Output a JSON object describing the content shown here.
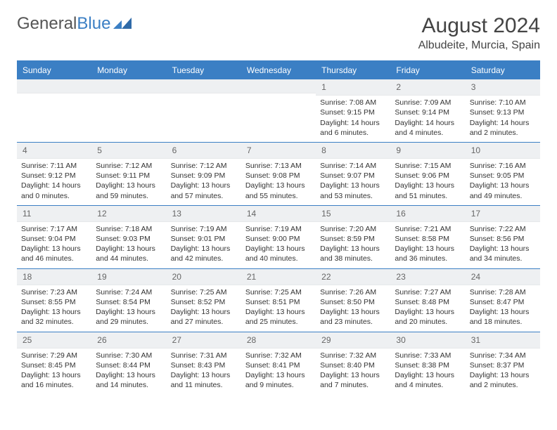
{
  "logo": {
    "text1": "General",
    "text2": "Blue"
  },
  "title": "August 2024",
  "location": "Albudeite, Murcia, Spain",
  "colors": {
    "header_bg": "#3b7fc4",
    "header_text": "#ffffff",
    "daynum_bg": "#eef0f2",
    "border": "#3b7fc4",
    "body_text": "#333333"
  },
  "weekdays": [
    "Sunday",
    "Monday",
    "Tuesday",
    "Wednesday",
    "Thursday",
    "Friday",
    "Saturday"
  ],
  "weeks": [
    [
      {
        "n": "",
        "sunrise": "",
        "sunset": "",
        "daylight": ""
      },
      {
        "n": "",
        "sunrise": "",
        "sunset": "",
        "daylight": ""
      },
      {
        "n": "",
        "sunrise": "",
        "sunset": "",
        "daylight": ""
      },
      {
        "n": "",
        "sunrise": "",
        "sunset": "",
        "daylight": ""
      },
      {
        "n": "1",
        "sunrise": "7:08 AM",
        "sunset": "9:15 PM",
        "daylight": "14 hours and 6 minutes."
      },
      {
        "n": "2",
        "sunrise": "7:09 AM",
        "sunset": "9:14 PM",
        "daylight": "14 hours and 4 minutes."
      },
      {
        "n": "3",
        "sunrise": "7:10 AM",
        "sunset": "9:13 PM",
        "daylight": "14 hours and 2 minutes."
      }
    ],
    [
      {
        "n": "4",
        "sunrise": "7:11 AM",
        "sunset": "9:12 PM",
        "daylight": "14 hours and 0 minutes."
      },
      {
        "n": "5",
        "sunrise": "7:12 AM",
        "sunset": "9:11 PM",
        "daylight": "13 hours and 59 minutes."
      },
      {
        "n": "6",
        "sunrise": "7:12 AM",
        "sunset": "9:09 PM",
        "daylight": "13 hours and 57 minutes."
      },
      {
        "n": "7",
        "sunrise": "7:13 AM",
        "sunset": "9:08 PM",
        "daylight": "13 hours and 55 minutes."
      },
      {
        "n": "8",
        "sunrise": "7:14 AM",
        "sunset": "9:07 PM",
        "daylight": "13 hours and 53 minutes."
      },
      {
        "n": "9",
        "sunrise": "7:15 AM",
        "sunset": "9:06 PM",
        "daylight": "13 hours and 51 minutes."
      },
      {
        "n": "10",
        "sunrise": "7:16 AM",
        "sunset": "9:05 PM",
        "daylight": "13 hours and 49 minutes."
      }
    ],
    [
      {
        "n": "11",
        "sunrise": "7:17 AM",
        "sunset": "9:04 PM",
        "daylight": "13 hours and 46 minutes."
      },
      {
        "n": "12",
        "sunrise": "7:18 AM",
        "sunset": "9:03 PM",
        "daylight": "13 hours and 44 minutes."
      },
      {
        "n": "13",
        "sunrise": "7:19 AM",
        "sunset": "9:01 PM",
        "daylight": "13 hours and 42 minutes."
      },
      {
        "n": "14",
        "sunrise": "7:19 AM",
        "sunset": "9:00 PM",
        "daylight": "13 hours and 40 minutes."
      },
      {
        "n": "15",
        "sunrise": "7:20 AM",
        "sunset": "8:59 PM",
        "daylight": "13 hours and 38 minutes."
      },
      {
        "n": "16",
        "sunrise": "7:21 AM",
        "sunset": "8:58 PM",
        "daylight": "13 hours and 36 minutes."
      },
      {
        "n": "17",
        "sunrise": "7:22 AM",
        "sunset": "8:56 PM",
        "daylight": "13 hours and 34 minutes."
      }
    ],
    [
      {
        "n": "18",
        "sunrise": "7:23 AM",
        "sunset": "8:55 PM",
        "daylight": "13 hours and 32 minutes."
      },
      {
        "n": "19",
        "sunrise": "7:24 AM",
        "sunset": "8:54 PM",
        "daylight": "13 hours and 29 minutes."
      },
      {
        "n": "20",
        "sunrise": "7:25 AM",
        "sunset": "8:52 PM",
        "daylight": "13 hours and 27 minutes."
      },
      {
        "n": "21",
        "sunrise": "7:25 AM",
        "sunset": "8:51 PM",
        "daylight": "13 hours and 25 minutes."
      },
      {
        "n": "22",
        "sunrise": "7:26 AM",
        "sunset": "8:50 PM",
        "daylight": "13 hours and 23 minutes."
      },
      {
        "n": "23",
        "sunrise": "7:27 AM",
        "sunset": "8:48 PM",
        "daylight": "13 hours and 20 minutes."
      },
      {
        "n": "24",
        "sunrise": "7:28 AM",
        "sunset": "8:47 PM",
        "daylight": "13 hours and 18 minutes."
      }
    ],
    [
      {
        "n": "25",
        "sunrise": "7:29 AM",
        "sunset": "8:45 PM",
        "daylight": "13 hours and 16 minutes."
      },
      {
        "n": "26",
        "sunrise": "7:30 AM",
        "sunset": "8:44 PM",
        "daylight": "13 hours and 14 minutes."
      },
      {
        "n": "27",
        "sunrise": "7:31 AM",
        "sunset": "8:43 PM",
        "daylight": "13 hours and 11 minutes."
      },
      {
        "n": "28",
        "sunrise": "7:32 AM",
        "sunset": "8:41 PM",
        "daylight": "13 hours and 9 minutes."
      },
      {
        "n": "29",
        "sunrise": "7:32 AM",
        "sunset": "8:40 PM",
        "daylight": "13 hours and 7 minutes."
      },
      {
        "n": "30",
        "sunrise": "7:33 AM",
        "sunset": "8:38 PM",
        "daylight": "13 hours and 4 minutes."
      },
      {
        "n": "31",
        "sunrise": "7:34 AM",
        "sunset": "8:37 PM",
        "daylight": "13 hours and 2 minutes."
      }
    ]
  ]
}
